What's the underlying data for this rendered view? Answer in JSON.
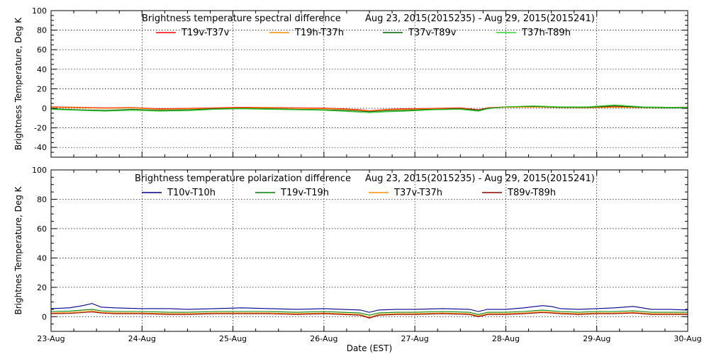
{
  "chart_data": [
    {
      "type": "line",
      "title_left": "Brightness temperature spectral difference",
      "title_right": "Aug 23, 2015(2015235) - Aug 29, 2015(2015241)",
      "ylabel": "Brightness Temperature, Deg K",
      "xlabel": "",
      "ylim": [
        -50,
        100
      ],
      "yticks": [
        -40,
        -20,
        0,
        20,
        40,
        60,
        80,
        100
      ],
      "xlim": [
        "2015-08-23",
        "2015-08-30"
      ],
      "xtick_labels": [],
      "grid": true,
      "legend_position": "top",
      "series": [
        {
          "name": "T19v-T37v",
          "color": "#ff0000",
          "x": [
            0,
            0.3,
            0.6,
            0.9,
            1.2,
            1.5,
            1.8,
            2.1,
            2.4,
            2.7,
            3.0,
            3.2,
            3.4,
            3.5,
            3.7,
            3.9,
            4.2,
            4.5,
            4.7,
            4.8,
            5.0,
            5.3,
            5.6,
            5.9,
            6.2,
            6.5,
            6.8,
            7.0
          ],
          "y": [
            1.5,
            1.0,
            0.5,
            0.8,
            -0.5,
            0.0,
            0.5,
            1.0,
            0.8,
            0.5,
            0.2,
            -0.5,
            -1.5,
            -2.5,
            -1.0,
            -0.5,
            0.0,
            0.5,
            -1.5,
            0.5,
            1.5,
            1.8,
            1.2,
            1.0,
            1.5,
            1.2,
            1.0,
            1.2
          ]
        },
        {
          "name": "T19h-T37h",
          "color": "#ff8c00",
          "x": [
            0,
            0.3,
            0.6,
            0.9,
            1.2,
            1.5,
            1.8,
            2.1,
            2.4,
            2.7,
            3.0,
            3.2,
            3.4,
            3.5,
            3.7,
            3.9,
            4.2,
            4.5,
            4.7,
            4.8,
            5.0,
            5.3,
            5.6,
            5.9,
            6.2,
            6.5,
            6.8,
            7.0
          ],
          "y": [
            1.0,
            0.6,
            0.0,
            0.4,
            -1.0,
            -0.5,
            0.0,
            0.5,
            0.4,
            0.0,
            -0.3,
            -1.0,
            -2.0,
            -3.0,
            -1.5,
            -1.0,
            -0.5,
            0.0,
            -2.0,
            0.0,
            1.0,
            1.3,
            0.8,
            0.6,
            1.0,
            0.8,
            0.6,
            0.8
          ]
        },
        {
          "name": "T37v-T89v",
          "color": "#006400",
          "x": [
            0,
            0.3,
            0.6,
            0.9,
            1.2,
            1.5,
            1.8,
            2.1,
            2.4,
            2.7,
            3.0,
            3.2,
            3.4,
            3.5,
            3.7,
            3.9,
            4.2,
            4.5,
            4.7,
            4.8,
            5.0,
            5.3,
            5.6,
            5.9,
            6.2,
            6.5,
            6.8,
            7.0
          ],
          "y": [
            -0.5,
            -1.5,
            -2.0,
            -1.0,
            -2.0,
            -1.5,
            -0.5,
            0.0,
            -0.5,
            -1.0,
            -1.5,
            -2.0,
            -3.0,
            -3.5,
            -2.5,
            -2.0,
            -1.0,
            -0.5,
            -2.0,
            0.0,
            1.5,
            2.0,
            1.0,
            1.0,
            2.5,
            1.0,
            0.5,
            0.5
          ]
        },
        {
          "name": "T37h-T89h",
          "color": "#32cd32",
          "x": [
            0,
            0.3,
            0.6,
            0.9,
            1.2,
            1.5,
            1.8,
            2.1,
            2.4,
            2.7,
            3.0,
            3.2,
            3.4,
            3.5,
            3.7,
            3.9,
            4.2,
            4.5,
            4.7,
            4.8,
            5.0,
            5.3,
            5.6,
            5.9,
            6.2,
            6.5,
            6.8,
            7.0
          ],
          "y": [
            -1.0,
            -2.0,
            -3.0,
            -2.0,
            -3.0,
            -2.5,
            -1.0,
            -0.5,
            -1.0,
            -1.5,
            -2.0,
            -3.0,
            -4.0,
            -4.5,
            -3.5,
            -3.0,
            -1.5,
            -1.0,
            -3.0,
            -0.5,
            1.5,
            2.5,
            1.5,
            1.5,
            3.5,
            1.5,
            1.0,
            1.0
          ]
        }
      ]
    },
    {
      "type": "line",
      "title_left": "Brightness temperature polarization difference",
      "title_right": "Aug 23, 2015(2015235) - Aug 29, 2015(2015241)",
      "ylabel": "Brightnes Temperature, Deg K",
      "xlabel": "Date (EST)",
      "ylim": [
        -10,
        100
      ],
      "yticks": [
        0,
        20,
        40,
        60,
        80,
        100
      ],
      "xlim": [
        "2015-08-23",
        "2015-08-30"
      ],
      "xtick_labels": [
        "23-Aug",
        "24-Aug",
        "25-Aug",
        "26-Aug",
        "27-Aug",
        "28-Aug",
        "29-Aug",
        "30-Aug"
      ],
      "grid": true,
      "legend_position": "top",
      "series": [
        {
          "name": "T10v-T10h",
          "color": "#00008b",
          "x": [
            0,
            0.2,
            0.35,
            0.45,
            0.55,
            0.7,
            1.0,
            1.3,
            1.5,
            1.8,
            2.1,
            2.4,
            2.7,
            3.0,
            3.2,
            3.4,
            3.5,
            3.6,
            3.8,
            4.0,
            4.3,
            4.6,
            4.7,
            4.8,
            5.0,
            5.2,
            5.4,
            5.5,
            5.6,
            5.8,
            6.0,
            6.2,
            6.4,
            6.5,
            6.6,
            6.8,
            7.0
          ],
          "y": [
            5.5,
            6.0,
            7.5,
            9.0,
            6.5,
            6.0,
            5.5,
            5.5,
            5.0,
            5.5,
            6.0,
            5.5,
            5.0,
            5.5,
            5.0,
            4.5,
            3.0,
            4.5,
            5.0,
            5.0,
            5.5,
            5.0,
            3.5,
            5.0,
            5.0,
            6.0,
            7.5,
            7.0,
            5.5,
            5.0,
            5.5,
            6.0,
            7.0,
            6.0,
            5.0,
            5.0,
            4.5
          ]
        },
        {
          "name": "T19v-T19h",
          "color": "#008000",
          "x": [
            0,
            0.2,
            0.35,
            0.45,
            0.55,
            0.7,
            1.0,
            1.3,
            1.5,
            1.8,
            2.1,
            2.4,
            2.7,
            3.0,
            3.2,
            3.4,
            3.5,
            3.6,
            3.8,
            4.0,
            4.3,
            4.6,
            4.7,
            4.8,
            5.0,
            5.2,
            5.4,
            5.5,
            5.6,
            5.8,
            6.0,
            6.2,
            6.4,
            6.5,
            6.6,
            6.8,
            7.0
          ],
          "y": [
            3.5,
            3.8,
            4.5,
            5.0,
            4.0,
            3.5,
            3.5,
            3.0,
            3.0,
            3.5,
            3.5,
            3.5,
            3.0,
            3.5,
            3.0,
            2.5,
            1.0,
            2.5,
            3.0,
            3.0,
            3.5,
            3.0,
            1.5,
            3.0,
            3.0,
            3.5,
            4.5,
            4.0,
            3.5,
            3.0,
            3.5,
            3.5,
            4.0,
            3.5,
            3.0,
            3.0,
            3.0
          ]
        },
        {
          "name": "T37v-T37h",
          "color": "#ff8c00",
          "x": [
            0,
            0.2,
            0.35,
            0.45,
            0.55,
            0.7,
            1.0,
            1.3,
            1.5,
            1.8,
            2.1,
            2.4,
            2.7,
            3.0,
            3.2,
            3.4,
            3.5,
            3.6,
            3.8,
            4.0,
            4.3,
            4.6,
            4.7,
            4.8,
            5.0,
            5.2,
            5.4,
            5.5,
            5.6,
            5.8,
            6.0,
            6.2,
            6.4,
            6.5,
            6.6,
            6.8,
            7.0
          ],
          "y": [
            2.5,
            2.8,
            3.5,
            4.0,
            3.0,
            2.5,
            2.5,
            2.0,
            2.0,
            2.5,
            2.5,
            2.5,
            2.0,
            2.5,
            2.0,
            1.5,
            -0.5,
            1.5,
            2.0,
            2.0,
            2.5,
            2.0,
            0.5,
            2.0,
            2.0,
            2.5,
            3.5,
            3.0,
            2.5,
            2.0,
            2.5,
            2.5,
            3.0,
            2.5,
            2.0,
            2.0,
            2.0
          ]
        },
        {
          "name": "T89v-T89h",
          "color": "#8b0000",
          "x": [
            0,
            0.2,
            0.35,
            0.45,
            0.55,
            0.7,
            1.0,
            1.3,
            1.5,
            1.8,
            2.1,
            2.4,
            2.7,
            3.0,
            3.2,
            3.4,
            3.5,
            3.6,
            3.8,
            4.0,
            4.3,
            4.6,
            4.7,
            4.8,
            5.0,
            5.2,
            5.4,
            5.5,
            5.6,
            5.8,
            6.0,
            6.2,
            6.4,
            6.5,
            6.6,
            6.8,
            7.0
          ],
          "y": [
            2.0,
            2.2,
            2.8,
            3.2,
            2.5,
            2.0,
            2.0,
            1.5,
            1.5,
            2.0,
            2.0,
            2.0,
            1.5,
            2.0,
            1.5,
            1.0,
            -1.0,
            1.0,
            1.5,
            1.5,
            2.0,
            1.5,
            0.0,
            1.5,
            1.5,
            2.0,
            2.8,
            2.5,
            2.0,
            1.5,
            2.0,
            2.0,
            2.5,
            2.0,
            1.5,
            1.5,
            1.5
          ]
        }
      ]
    }
  ]
}
